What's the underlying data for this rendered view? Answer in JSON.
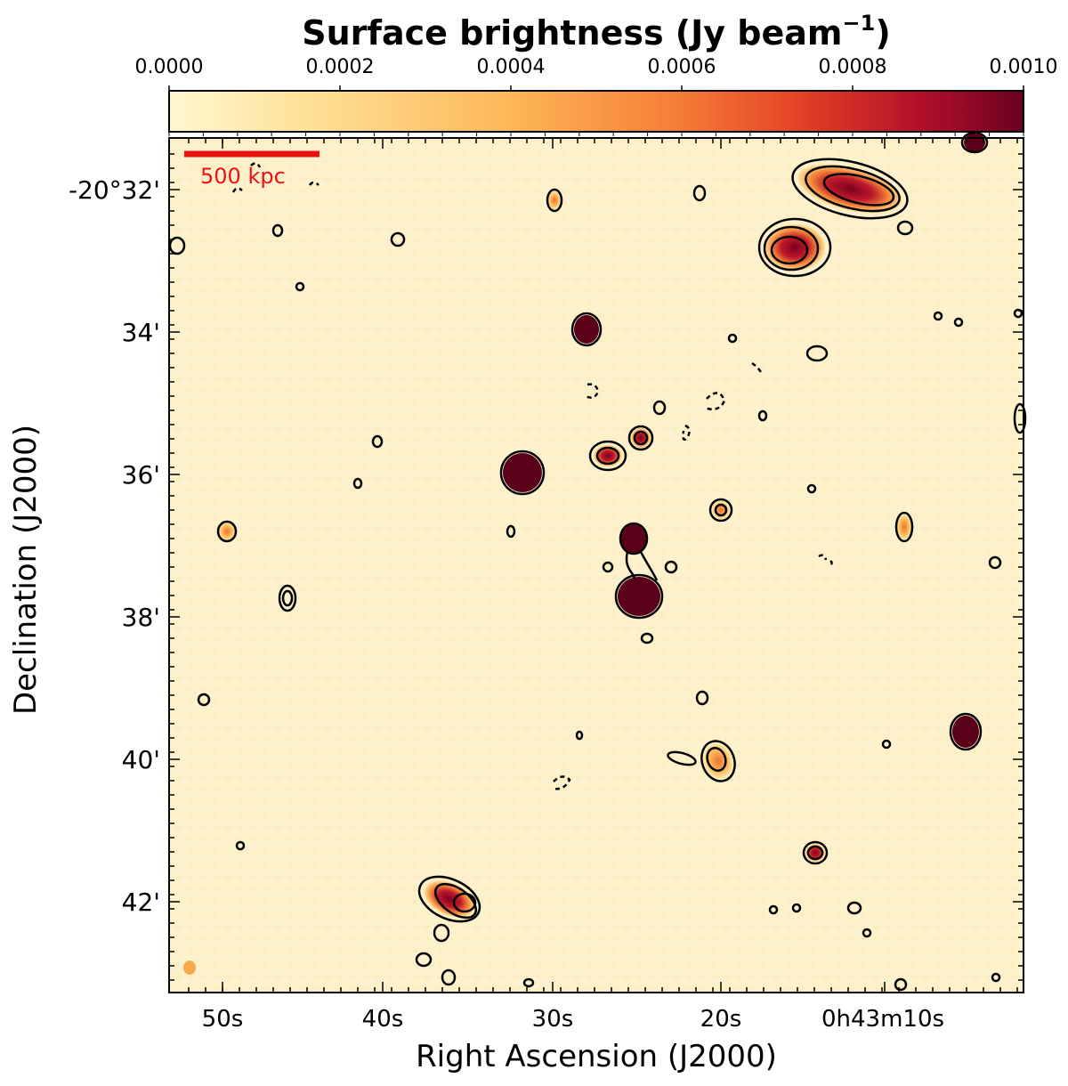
{
  "colorbar": {
    "title": "Surface brightness (Jy beam",
    "title_superscript": "−1",
    "title_close": ")",
    "ticks": [
      "0.0000",
      "0.0002",
      "0.0004",
      "0.0006",
      "0.0008",
      "0.0010"
    ],
    "range": [
      0.0,
      0.001
    ],
    "colormap": [
      "#fff7d1",
      "#fee39a",
      "#fdb757",
      "#f57b35",
      "#e13d24",
      "#b2102a",
      "#6a001f"
    ]
  },
  "axes": {
    "xlabel": "Right Ascension (J2000)",
    "ylabel": "Declination (J2000)",
    "xticks": [
      "50s",
      "40s",
      "30s",
      "20s",
      "0h43m10s"
    ],
    "yticks": [
      "-20°32'",
      "34'",
      "36'",
      "38'",
      "40'",
      "42'"
    ]
  },
  "scalebar": {
    "label": "500 kpc",
    "color": "#ee1111"
  },
  "colors": {
    "background": "#fcf1cb",
    "contour": "#000000"
  }
}
